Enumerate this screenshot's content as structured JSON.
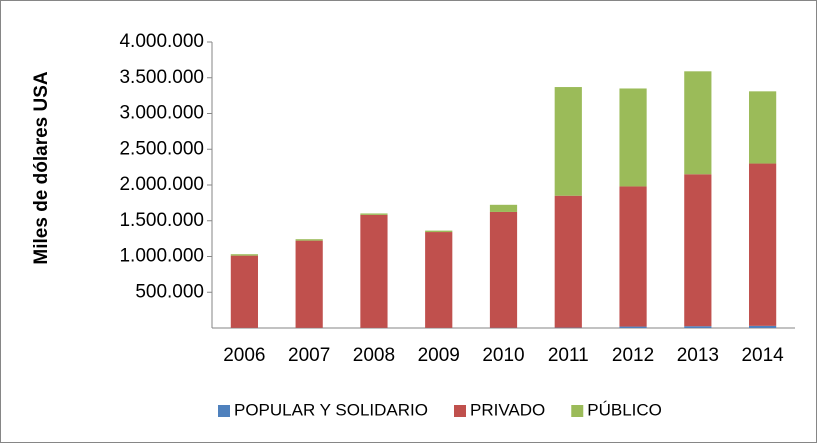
{
  "chart_data": {
    "type": "stacked-bar",
    "y_label": "Miles de dólares USA",
    "categories": [
      "2006",
      "2007",
      "2008",
      "2009",
      "2010",
      "2011",
      "2012",
      "2013",
      "2014"
    ],
    "series": [
      {
        "name": "POPULAR Y SOLIDARIO",
        "color": "#4f81bd",
        "values": [
          2000,
          2000,
          2000,
          2000,
          3000,
          5000,
          20000,
          25000,
          30000
        ]
      },
      {
        "name": "PRIVADO",
        "color": "#c0504d",
        "values": [
          1010000,
          1220000,
          1580000,
          1340000,
          1620000,
          1845000,
          1960000,
          2125000,
          2270000
        ]
      },
      {
        "name": "PÚBLICO",
        "color": "#9bbb59",
        "values": [
          20000,
          20000,
          20000,
          20000,
          100000,
          1520000,
          1370000,
          1440000,
          1010000
        ]
      }
    ],
    "ylim": [
      0,
      4000000
    ],
    "yticks": [
      {
        "value": 500000,
        "label": "500.000"
      },
      {
        "value": 1000000,
        "label": "1.000.000"
      },
      {
        "value": 1500000,
        "label": "1.500.000"
      },
      {
        "value": 2000000,
        "label": "2.000.000"
      },
      {
        "value": 2500000,
        "label": "2.500.000"
      },
      {
        "value": 3000000,
        "label": "3.000.000"
      },
      {
        "value": 3500000,
        "label": "3.500.000"
      },
      {
        "value": 4000000,
        "label": "4.000.000"
      }
    ],
    "grid": false,
    "legend": "bottom"
  }
}
